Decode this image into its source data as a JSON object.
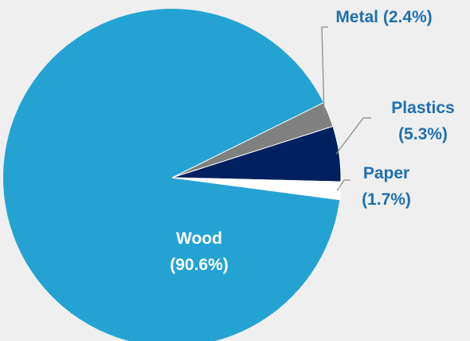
{
  "chart_data": {
    "type": "pie",
    "title": "",
    "slices": [
      {
        "label": "Wood",
        "value": 90.6,
        "display": "(90.6%)",
        "color": "#24a3d3",
        "label_color": "#ffffff"
      },
      {
        "label": "Metal",
        "value": 2.4,
        "display": "(2.4%)",
        "color": "#808080",
        "label_color": "#1f6fb2"
      },
      {
        "label": "Plastics",
        "value": 5.3,
        "display": "(5.3%)",
        "color": "#002060",
        "label_color": "#1f6fb2"
      },
      {
        "label": "Paper",
        "value": 1.7,
        "display": "(1.7%)",
        "color": "#ffffff",
        "label_color": "#1f6fb2"
      }
    ]
  },
  "labels": {
    "wood_name": "Wood",
    "wood_value": "(90.6%)",
    "metal_full": "Metal (2.4%)",
    "plastics_name": "Plastics",
    "plastics_value": "(5.3%)",
    "paper_name": "Paper",
    "paper_value": "(1.7%)"
  }
}
